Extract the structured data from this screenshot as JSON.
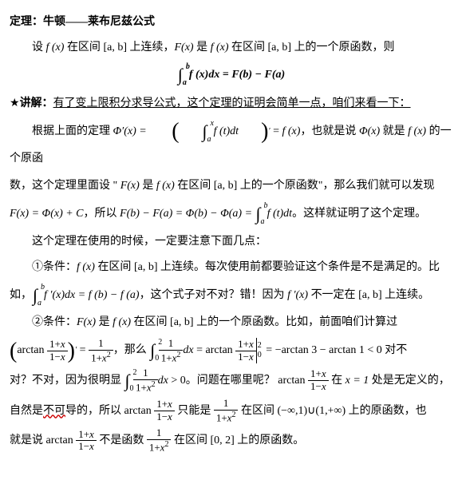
{
  "theorem": {
    "head": "定理：牛顿——莱布尼兹公式",
    "l1a": "设 ",
    "l1b": " 在区间 ",
    "l1c": " 上连续，",
    "l1d": " 是 ",
    "l1e": " 在区间 ",
    "l1f": " 上的一个原函数，则"
  },
  "lecture": {
    "star": "★",
    "head": "讲解：",
    "p1": "有了变上限积分求导公式，这个定理的证明会简单一点，咱们来看一下：",
    "p2a": "根据上面的定理 ",
    "p2b": "，也就是说 ",
    "p2c": " 就是 ",
    "p2d": " 的一个原函",
    "p3a": "数，这个定理里面设 \" ",
    "p3b": " 是 ",
    "p3c": " 在区间 ",
    "p3d": " 上的一个原函数\"，那么我们就可以发现",
    "p4a": "，所以 ",
    "p4b": "。这样就证明了这个定理。",
    "p5": "这个定理在使用的时候，一定要注意下面几点：",
    "c1a": "①条件：",
    "c1b": " 在区间 ",
    "c1c": " 上连续。每次使用前都要验证这个条件是不是满足的。比",
    "c1d": "如，",
    "c1e": "，这个式子对不对？错！因为 ",
    "c1f": " 不一定在 ",
    "c1g": " 上连续。",
    "c2a": "②条件：",
    "c2b": " 是 ",
    "c2c": " 在区间 ",
    "c2d": " 上的一个原函数。比如，前面咱们计算过",
    "c2e": "，那么 ",
    "c2f": " 对不",
    "c2g": "对？不对，因为很明显 ",
    "c2h": "。问题在哪里呢？ ",
    "c2i": " 在 ",
    "c2j": " 处是无定义的，",
    "c2k": "自然是",
    "c2k2": "不可",
    "c2k3": "导的，所以 ",
    "c2l": " 只能是 ",
    "c2m": " 在区间 ",
    "c2n": " 上的原函数，也",
    "c2o": "就是说 ",
    "c2p": " 不是函数 ",
    "c2q": " 在区间 ",
    "c2r": " 上的原函数。"
  },
  "sym": {
    "fx": "f (x)",
    "Fx": "F(x)",
    "Phix": "Φ(x)",
    "ab": "[a, b]",
    "fpx": "f ′(x)",
    "x1": "x = 1",
    "int02": "[0, 2]",
    "inf": "(−∞,1)∪(1,+∞)"
  }
}
